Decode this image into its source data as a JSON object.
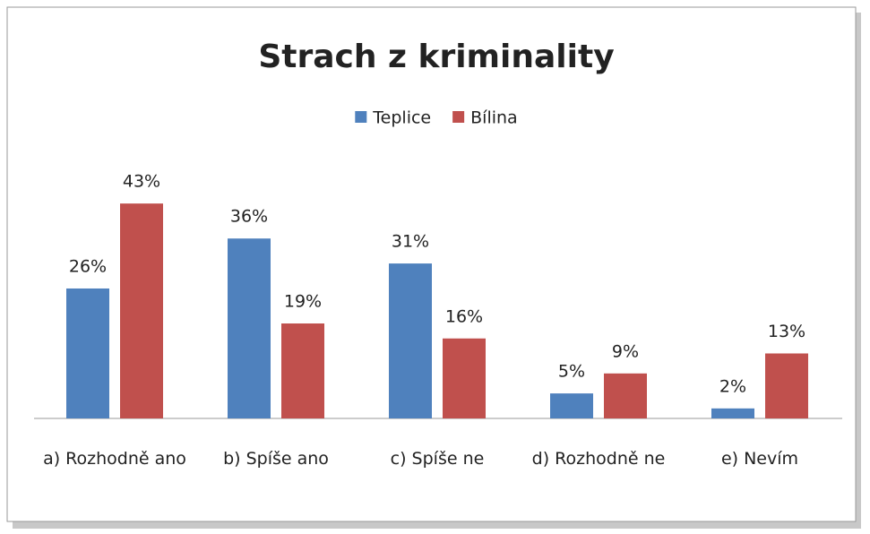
{
  "chart_data": {
    "type": "bar",
    "title": "Strach z kriminality",
    "categories": [
      "a) Rozhodně ano",
      "b) Spíše ano",
      "c) Spíše ne",
      "d) Rozhodně ne",
      "e) Nevím"
    ],
    "series": [
      {
        "name": "Teplice",
        "color": "#4f81bd",
        "values": [
          26,
          36,
          31,
          5,
          2
        ],
        "value_labels": [
          "26%",
          "36%",
          "31%",
          "5%",
          "2%"
        ]
      },
      {
        "name": "Bílina",
        "color": "#c0504d",
        "values": [
          43,
          19,
          16,
          9,
          13
        ],
        "value_labels": [
          "43%",
          "19%",
          "16%",
          "9%",
          "13%"
        ]
      }
    ],
    "ylim": [
      0,
      45
    ],
    "legend": "top"
  }
}
